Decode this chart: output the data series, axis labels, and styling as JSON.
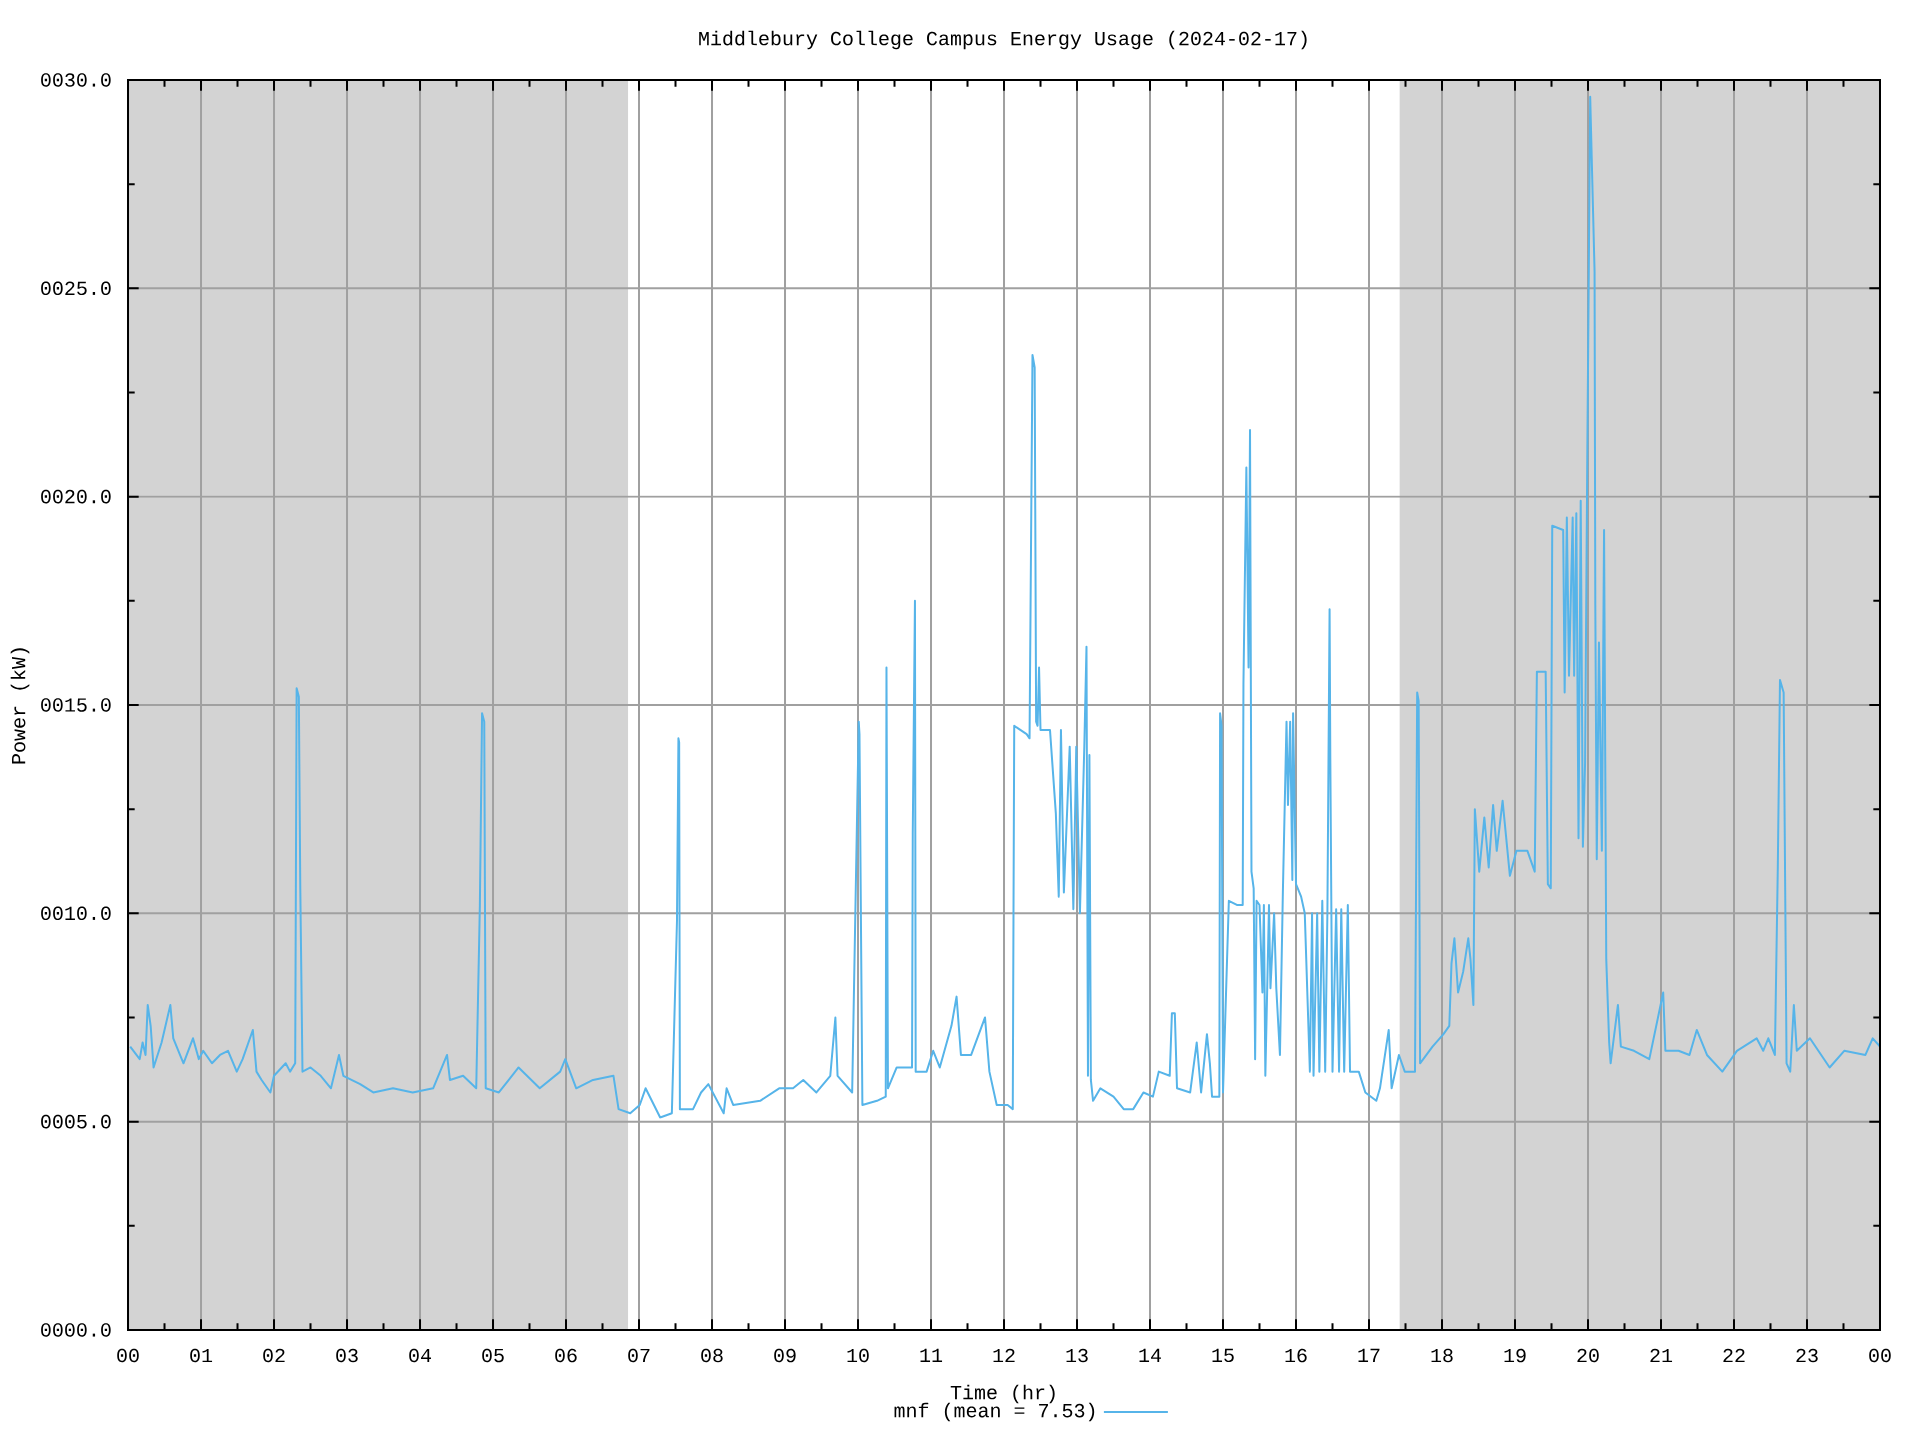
{
  "chart_data": {
    "type": "line",
    "title": "Middlebury College Campus Energy Usage (2024-02-17)",
    "xlabel": "Time (hr)",
    "ylabel": "Power (kW)",
    "xlim": [
      0,
      24
    ],
    "ylim": [
      0,
      30
    ],
    "xticks": [
      {
        "value": 0,
        "label": "00"
      },
      {
        "value": 0.5,
        "label": null
      },
      {
        "value": 1,
        "label": "01"
      },
      {
        "value": 1.5,
        "label": null
      },
      {
        "value": 2,
        "label": "02"
      },
      {
        "value": 2.5,
        "label": null
      },
      {
        "value": 3,
        "label": "03"
      },
      {
        "value": 3.5,
        "label": null
      },
      {
        "value": 4,
        "label": "04"
      },
      {
        "value": 4.5,
        "label": null
      },
      {
        "value": 5,
        "label": "05"
      },
      {
        "value": 5.5,
        "label": null
      },
      {
        "value": 6,
        "label": "06"
      },
      {
        "value": 6.5,
        "label": null
      },
      {
        "value": 7,
        "label": "07"
      },
      {
        "value": 7.5,
        "label": null
      },
      {
        "value": 8,
        "label": "08"
      },
      {
        "value": 8.5,
        "label": null
      },
      {
        "value": 9,
        "label": "09"
      },
      {
        "value": 9.5,
        "label": null
      },
      {
        "value": 10,
        "label": "10"
      },
      {
        "value": 10.5,
        "label": null
      },
      {
        "value": 11,
        "label": "11"
      },
      {
        "value": 11.5,
        "label": null
      },
      {
        "value": 12,
        "label": "12"
      },
      {
        "value": 12.5,
        "label": null
      },
      {
        "value": 13,
        "label": "13"
      },
      {
        "value": 13.5,
        "label": null
      },
      {
        "value": 14,
        "label": "14"
      },
      {
        "value": 14.5,
        "label": null
      },
      {
        "value": 15,
        "label": "15"
      },
      {
        "value": 15.5,
        "label": null
      },
      {
        "value": 16,
        "label": "16"
      },
      {
        "value": 16.5,
        "label": null
      },
      {
        "value": 17,
        "label": "17"
      },
      {
        "value": 17.5,
        "label": null
      },
      {
        "value": 18,
        "label": "18"
      },
      {
        "value": 18.5,
        "label": null
      },
      {
        "value": 19,
        "label": "19"
      },
      {
        "value": 19.5,
        "label": null
      },
      {
        "value": 20,
        "label": "20"
      },
      {
        "value": 20.5,
        "label": null
      },
      {
        "value": 21,
        "label": "21"
      },
      {
        "value": 21.5,
        "label": null
      },
      {
        "value": 22,
        "label": "22"
      },
      {
        "value": 22.5,
        "label": null
      },
      {
        "value": 23,
        "label": "23"
      },
      {
        "value": 23.5,
        "label": null
      },
      {
        "value": 24,
        "label": "00"
      }
    ],
    "yticks": [
      {
        "value": 0,
        "label": "0000.0"
      },
      {
        "value": 2.5,
        "label": null
      },
      {
        "value": 5,
        "label": "0005.0"
      },
      {
        "value": 7.5,
        "label": null
      },
      {
        "value": 10,
        "label": "0010.0"
      },
      {
        "value": 12.5,
        "label": null
      },
      {
        "value": 15,
        "label": "0015.0"
      },
      {
        "value": 17.5,
        "label": null
      },
      {
        "value": 20,
        "label": "0020.0"
      },
      {
        "value": 22.5,
        "label": null
      },
      {
        "value": 25,
        "label": "0025.0"
      },
      {
        "value": 27.5,
        "label": null
      },
      {
        "value": 30,
        "label": "0030.0"
      }
    ],
    "grid": true,
    "legend": "bottom",
    "line_style": "solid",
    "bands": [
      {
        "axis": "x",
        "from": 0,
        "to": 6.85,
        "color": "#d3d3d3"
      },
      {
        "axis": "x",
        "from": 17.42,
        "to": 24,
        "color": "#d3d3d3"
      }
    ],
    "x": [
      0.03,
      0.16,
      0.2,
      0.24,
      0.27,
      0.31,
      0.35,
      0.46,
      0.58,
      0.62,
      0.76,
      0.89,
      0.97,
      1.03,
      1.15,
      1.26,
      1.37,
      1.49,
      1.57,
      1.71,
      1.76,
      1.83,
      1.95,
      2.0,
      2.16,
      2.22,
      2.29,
      2.3,
      2.31,
      2.34,
      2.36,
      2.39,
      2.5,
      2.64,
      2.78,
      2.89,
      2.95,
      3.18,
      3.36,
      3.63,
      3.9,
      4.18,
      4.37,
      4.41,
      4.59,
      4.77,
      4.82,
      4.85,
      4.88,
      4.9,
      5.08,
      5.35,
      5.64,
      5.92,
      5.99,
      6.14,
      6.37,
      6.65,
      6.72,
      6.88,
      7.01,
      7.09,
      7.29,
      7.45,
      7.52,
      7.54,
      7.55,
      7.56,
      7.74,
      7.85,
      7.95,
      8.16,
      8.2,
      8.29,
      8.66,
      8.92,
      9.11,
      9.25,
      9.43,
      9.62,
      9.69,
      9.72,
      9.92,
      10.01,
      10.02,
      10.06,
      10.26,
      10.38,
      10.39,
      10.4,
      10.41,
      10.53,
      10.74,
      10.75,
      10.78,
      10.79,
      10.94,
      11.03,
      11.12,
      11.28,
      11.35,
      11.41,
      11.55,
      11.74,
      11.8,
      11.9,
      12.05,
      12.12,
      12.13,
      12.14,
      12.31,
      12.35,
      12.37,
      12.39,
      12.42,
      12.44,
      12.46,
      12.48,
      12.5,
      12.63,
      12.71,
      12.75,
      12.78,
      12.82,
      12.9,
      12.95,
      12.99,
      13.04,
      13.1,
      13.13,
      13.15,
      13.17,
      13.19,
      13.22,
      13.32,
      13.5,
      13.64,
      13.77,
      13.91,
      14.04,
      14.12,
      14.27,
      14.3,
      14.34,
      14.37,
      14.55,
      14.64,
      14.7,
      14.78,
      14.82,
      14.85,
      14.95,
      14.96,
      14.98,
      15.0,
      15.08,
      15.19,
      15.27,
      15.28,
      15.32,
      15.35,
      15.37,
      15.39,
      15.42,
      15.44,
      15.46,
      15.5,
      15.54,
      15.56,
      15.58,
      15.63,
      15.65,
      15.7,
      15.73,
      15.78,
      15.82,
      15.87,
      15.89,
      15.92,
      15.95,
      15.96,
      16.0,
      16.07,
      16.12,
      16.19,
      16.22,
      16.24,
      16.29,
      16.32,
      16.36,
      16.4,
      16.43,
      16.46,
      16.47,
      16.5,
      16.55,
      16.59,
      16.62,
      16.66,
      16.71,
      16.74,
      16.86,
      16.95,
      17.1,
      17.15,
      17.27,
      17.31,
      17.41,
      17.49,
      17.63,
      17.66,
      17.68,
      17.69,
      17.7,
      17.87,
      18.02,
      18.1,
      18.13,
      18.17,
      18.22,
      18.29,
      18.36,
      18.39,
      18.43,
      18.45,
      18.51,
      18.58,
      18.64,
      18.7,
      18.75,
      18.83,
      18.93,
      19.02,
      19.17,
      19.27,
      19.3,
      19.42,
      19.45,
      19.49,
      19.51,
      19.66,
      19.68,
      19.71,
      19.74,
      19.79,
      19.81,
      19.84,
      19.87,
      19.9,
      19.93,
      19.96,
      19.99,
      20.03,
      20.07,
      20.09,
      20.1,
      20.12,
      20.15,
      20.19,
      20.22,
      20.25,
      20.29,
      20.31,
      20.41,
      20.45,
      20.63,
      20.84,
      21.03,
      21.06,
      21.24,
      21.39,
      21.49,
      21.63,
      21.84,
      22.04,
      22.31,
      22.4,
      22.47,
      22.56,
      22.6,
      22.63,
      22.68,
      22.72,
      22.77,
      22.82,
      22.86,
      23.04,
      23.31,
      23.51,
      23.8,
      23.9,
      24.0
    ],
    "series": [
      {
        "name": "mnf (mean = 7.53)",
        "color": "#56b4e9",
        "values": [
          6.8,
          6.5,
          6.9,
          6.6,
          7.8,
          7.3,
          6.3,
          6.9,
          7.8,
          7.0,
          6.4,
          7.0,
          6.5,
          6.7,
          6.4,
          6.6,
          6.7,
          6.2,
          6.5,
          7.2,
          6.2,
          6.0,
          5.7,
          6.1,
          6.4,
          6.2,
          6.4,
          10.9,
          15.4,
          15.2,
          10.6,
          6.2,
          6.3,
          6.1,
          5.8,
          6.6,
          6.1,
          5.9,
          5.7,
          5.8,
          5.7,
          5.8,
          6.6,
          6.0,
          6.1,
          5.8,
          10.2,
          14.8,
          14.6,
          5.8,
          5.7,
          6.3,
          5.8,
          6.2,
          6.5,
          5.8,
          6.0,
          6.1,
          5.3,
          5.2,
          5.4,
          5.8,
          5.1,
          5.2,
          9.8,
          14.2,
          14.1,
          5.3,
          5.3,
          5.7,
          5.9,
          5.2,
          5.8,
          5.4,
          5.5,
          5.8,
          5.8,
          6.0,
          5.7,
          6.1,
          7.5,
          6.1,
          5.7,
          14.6,
          14.3,
          5.4,
          5.5,
          5.6,
          15.9,
          10.8,
          5.8,
          6.3,
          6.3,
          11.9,
          17.5,
          6.2,
          6.2,
          6.7,
          6.3,
          7.3,
          8.0,
          6.6,
          6.6,
          7.5,
          6.2,
          5.4,
          5.4,
          5.3,
          10.0,
          14.5,
          14.3,
          14.2,
          18.8,
          23.4,
          23.1,
          14.6,
          14.5,
          15.9,
          14.4,
          14.4,
          12.4,
          10.4,
          14.4,
          10.5,
          14.0,
          10.1,
          14.0,
          10.0,
          14.0,
          16.4,
          6.1,
          13.8,
          6.0,
          5.5,
          5.8,
          5.6,
          5.3,
          5.3,
          5.7,
          5.6,
          6.2,
          6.1,
          7.6,
          7.6,
          5.8,
          5.7,
          6.9,
          5.7,
          7.1,
          6.4,
          5.6,
          5.6,
          14.8,
          14.5,
          5.7,
          10.3,
          10.2,
          10.2,
          15.5,
          20.7,
          15.9,
          21.6,
          11.0,
          10.6,
          6.5,
          10.3,
          10.2,
          8.1,
          10.2,
          6.1,
          10.2,
          8.2,
          10.0,
          8.2,
          6.6,
          10.5,
          14.6,
          12.6,
          14.6,
          10.8,
          14.8,
          10.7,
          10.4,
          10.0,
          6.2,
          10.0,
          6.1,
          10.0,
          6.2,
          10.3,
          6.2,
          10.0,
          17.3,
          13.7,
          6.2,
          10.1,
          6.2,
          10.1,
          6.2,
          10.2,
          6.2,
          6.2,
          5.7,
          5.5,
          5.8,
          7.2,
          5.8,
          6.6,
          6.2,
          6.2,
          15.3,
          15.1,
          10.6,
          6.4,
          6.8,
          7.1,
          7.3,
          8.8,
          9.4,
          8.1,
          8.6,
          9.4,
          8.9,
          7.8,
          12.5,
          11.0,
          12.3,
          11.1,
          12.6,
          11.5,
          12.7,
          10.9,
          11.5,
          11.5,
          11.0,
          15.8,
          15.8,
          10.7,
          10.6,
          19.3,
          19.2,
          15.3,
          19.5,
          15.7,
          19.5,
          15.7,
          19.6,
          11.8,
          19.9,
          11.6,
          13.6,
          20.9,
          29.6,
          26.8,
          25.4,
          17.4,
          11.3,
          16.5,
          11.5,
          19.2,
          8.9,
          6.9,
          6.4,
          7.8,
          6.8,
          6.7,
          6.5,
          8.1,
          6.7,
          6.7,
          6.6,
          7.2,
          6.6,
          6.2,
          6.7,
          7.0,
          6.7,
          7.0,
          6.6,
          11.1,
          15.6,
          15.3,
          6.4,
          6.2,
          7.8,
          6.7,
          7.0,
          6.3,
          6.7,
          6.6,
          7.0,
          6.8
        ]
      }
    ]
  }
}
